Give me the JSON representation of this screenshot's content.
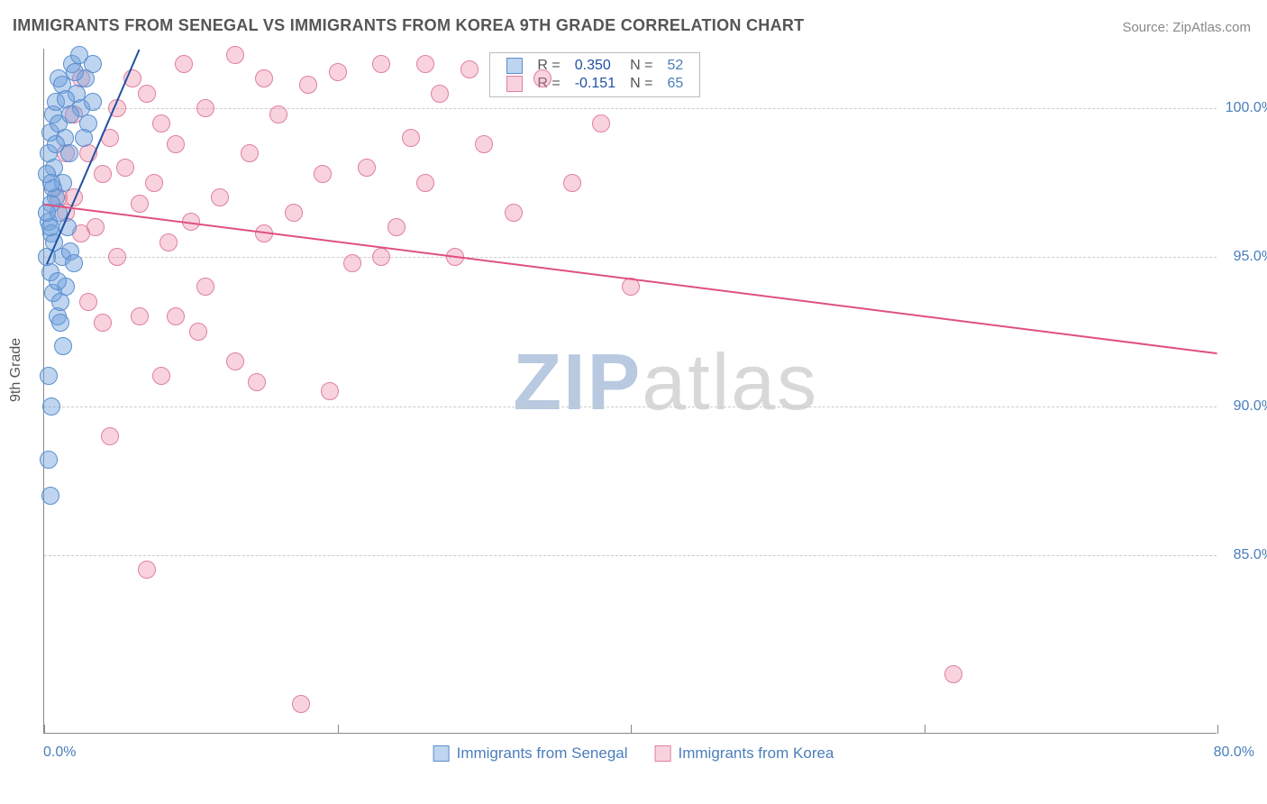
{
  "title": "IMMIGRANTS FROM SENEGAL VS IMMIGRANTS FROM KOREA 9TH GRADE CORRELATION CHART",
  "source": "Source: ZipAtlas.com",
  "ylabel": "9th Grade",
  "watermark": {
    "zip": "ZIP",
    "atlas": "atlas",
    "zip_color": "#b8c9e0",
    "atlas_color": "#d8d8d8"
  },
  "colors": {
    "axis_text": "#4a7ebb",
    "grid": "#cccccc",
    "series_a_fill": "rgba(110,160,220,0.45)",
    "series_a_stroke": "#5a8fd0",
    "series_a_trend": "#2050a0",
    "series_b_fill": "rgba(235,130,160,0.35)",
    "series_b_stroke": "#e07fa0",
    "series_b_trend": "#e05080",
    "stat_r_color": "#2050a0",
    "stat_n_color": "#4a7ebb"
  },
  "chart": {
    "type": "scatter",
    "xlim": [
      0,
      80
    ],
    "ylim": [
      79,
      102
    ],
    "xticks": [
      0,
      20,
      40,
      60,
      80
    ],
    "yticks": [
      85,
      90,
      95,
      100
    ],
    "ytick_labels": [
      "85.0%",
      "90.0%",
      "95.0%",
      "100.0%"
    ],
    "xlim_labels": {
      "min": "0.0%",
      "max": "80.0%"
    },
    "marker_radius": 10,
    "marker_opacity": 0.5,
    "grid_dash": true
  },
  "legend_stats": [
    {
      "swatch_fill": "rgba(110,160,220,0.45)",
      "swatch_stroke": "#5a8fd0",
      "r": "0.350",
      "n": "52"
    },
    {
      "swatch_fill": "rgba(235,130,160,0.35)",
      "swatch_stroke": "#e07fa0",
      "r": "-0.151",
      "n": "65"
    }
  ],
  "bottom_legend": [
    {
      "label": "Immigrants from Senegal",
      "swatch_fill": "rgba(110,160,220,0.45)",
      "swatch_stroke": "#5a8fd0"
    },
    {
      "label": "Immigrants from Korea",
      "swatch_fill": "rgba(235,130,160,0.35)",
      "swatch_stroke": "#e07fa0"
    }
  ],
  "series_a": {
    "name": "Immigrants from Senegal",
    "trend": {
      "x1": 0.2,
      "y1": 94.8,
      "x2": 6.5,
      "y2": 102.0
    },
    "points": [
      [
        0.3,
        96.2
      ],
      [
        0.5,
        95.8
      ],
      [
        0.8,
        97.0
      ],
      [
        1.0,
        96.5
      ],
      [
        1.2,
        95.0
      ],
      [
        1.5,
        94.0
      ],
      [
        0.4,
        94.5
      ],
      [
        0.6,
        93.8
      ],
      [
        0.9,
        93.0
      ],
      [
        1.1,
        92.8
      ],
      [
        0.7,
        98.0
      ],
      [
        1.3,
        97.5
      ],
      [
        1.6,
        96.0
      ],
      [
        1.8,
        95.2
      ],
      [
        2.0,
        94.8
      ],
      [
        0.5,
        90.0
      ],
      [
        0.3,
        88.2
      ],
      [
        0.4,
        87.0
      ],
      [
        2.2,
        100.5
      ],
      [
        2.5,
        100.0
      ],
      [
        2.8,
        101.0
      ],
      [
        3.0,
        99.5
      ],
      [
        1.4,
        99.0
      ],
      [
        1.7,
        98.5
      ],
      [
        1.9,
        101.5
      ],
      [
        0.6,
        99.8
      ],
      [
        0.8,
        100.2
      ],
      [
        1.0,
        101.0
      ],
      [
        0.2,
        97.8
      ],
      [
        0.3,
        98.5
      ],
      [
        0.4,
        99.2
      ],
      [
        0.5,
        96.8
      ],
      [
        0.7,
        95.5
      ],
      [
        0.9,
        94.2
      ],
      [
        1.1,
        93.5
      ],
      [
        1.3,
        92.0
      ],
      [
        0.2,
        95.0
      ],
      [
        0.4,
        96.0
      ],
      [
        0.6,
        97.3
      ],
      [
        0.8,
        98.8
      ],
      [
        1.0,
        99.5
      ],
      [
        1.2,
        100.8
      ],
      [
        1.5,
        100.3
      ],
      [
        1.8,
        99.8
      ],
      [
        2.1,
        101.2
      ],
      [
        2.4,
        101.8
      ],
      [
        3.3,
        101.5
      ],
      [
        3.3,
        100.2
      ],
      [
        0.3,
        91.0
      ],
      [
        2.7,
        99.0
      ],
      [
        0.2,
        96.5
      ],
      [
        0.5,
        97.5
      ]
    ]
  },
  "series_b": {
    "name": "Immigrants from Korea",
    "trend": {
      "x1": 0.0,
      "y1": 96.8,
      "x2": 80.0,
      "y2": 91.8
    },
    "points": [
      [
        1.5,
        96.5
      ],
      [
        2.0,
        97.0
      ],
      [
        2.5,
        95.8
      ],
      [
        3.0,
        98.5
      ],
      [
        3.5,
        96.0
      ],
      [
        4.0,
        97.8
      ],
      [
        4.5,
        99.0
      ],
      [
        5.0,
        95.0
      ],
      [
        5.5,
        98.0
      ],
      [
        6.0,
        101.0
      ],
      [
        6.5,
        96.8
      ],
      [
        7.0,
        100.5
      ],
      [
        7.5,
        97.5
      ],
      [
        8.0,
        99.5
      ],
      [
        8.5,
        95.5
      ],
      [
        9.0,
        98.8
      ],
      [
        9.5,
        101.5
      ],
      [
        10.0,
        96.2
      ],
      [
        11.0,
        100.0
      ],
      [
        12.0,
        97.0
      ],
      [
        13.0,
        101.8
      ],
      [
        14.0,
        98.5
      ],
      [
        15.0,
        95.8
      ],
      [
        16.0,
        99.8
      ],
      [
        17.0,
        96.5
      ],
      [
        18.0,
        100.8
      ],
      [
        19.0,
        97.8
      ],
      [
        20.0,
        101.2
      ],
      [
        21.0,
        94.8
      ],
      [
        22.0,
        98.0
      ],
      [
        23.0,
        101.5
      ],
      [
        24.0,
        96.0
      ],
      [
        25.0,
        99.0
      ],
      [
        26.0,
        97.5
      ],
      [
        27.0,
        100.5
      ],
      [
        28.0,
        95.0
      ],
      [
        6.5,
        93.0
      ],
      [
        8.0,
        91.0
      ],
      [
        10.5,
        92.5
      ],
      [
        14.5,
        90.8
      ],
      [
        19.5,
        90.5
      ],
      [
        4.5,
        89.0
      ],
      [
        17.5,
        80.0
      ],
      [
        7.0,
        84.5
      ],
      [
        30.0,
        98.8
      ],
      [
        32.0,
        96.5
      ],
      [
        34.0,
        101.0
      ],
      [
        29.0,
        101.3
      ],
      [
        40.0,
        94.0
      ],
      [
        62.0,
        81.0
      ],
      [
        3.0,
        93.5
      ],
      [
        4.0,
        92.8
      ],
      [
        1.0,
        97.0
      ],
      [
        1.5,
        98.5
      ],
      [
        2.0,
        99.8
      ],
      [
        2.5,
        101.0
      ],
      [
        36.0,
        97.5
      ],
      [
        38.0,
        99.5
      ],
      [
        11.0,
        94.0
      ],
      [
        13.0,
        91.5
      ],
      [
        26.0,
        101.5
      ],
      [
        23.0,
        95.0
      ],
      [
        15.0,
        101.0
      ],
      [
        9.0,
        93.0
      ],
      [
        5.0,
        100.0
      ]
    ]
  }
}
